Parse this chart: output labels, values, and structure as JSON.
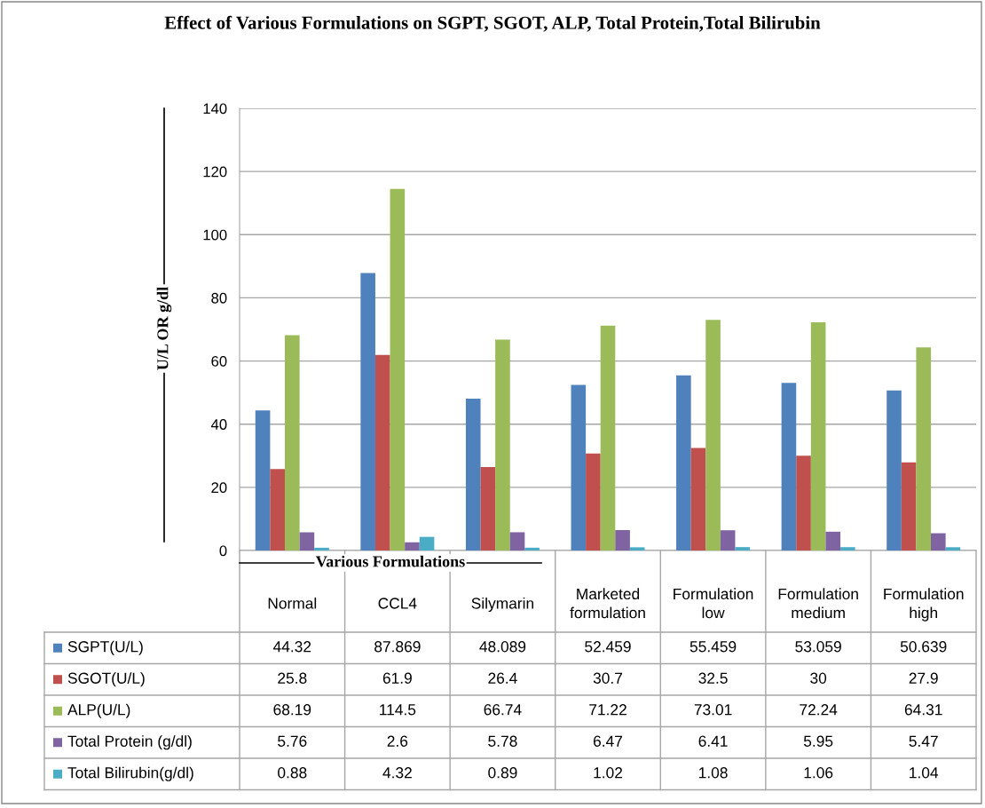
{
  "chart_data": {
    "type": "bar",
    "title": "Effect of Various Formulations on SGPT, SGOT, ALP, Total Protein,Total Bilirubin",
    "xlabel": "Various Formulations",
    "ylabel": "U/L OR g/dl",
    "categories": [
      "Normal",
      "CCL4",
      "Silymarin",
      "Marketed formulation",
      "Formulation low",
      "Formulation medium",
      "Formulation high"
    ],
    "series": [
      {
        "name": "SGPT(U/L)",
        "color": "#4f81bd",
        "values": [
          44.32,
          87.869,
          48.089,
          52.459,
          55.459,
          53.059,
          50.639
        ]
      },
      {
        "name": "SGOT(U/L)",
        "color": "#c0504d",
        "values": [
          25.8,
          61.9,
          26.4,
          30.7,
          32.5,
          30,
          27.9
        ]
      },
      {
        "name": "ALP(U/L)",
        "color": "#9bbb59",
        "values": [
          68.19,
          114.5,
          66.74,
          71.22,
          73.01,
          72.24,
          64.31
        ]
      },
      {
        "name": "Total Protein (g/dl)",
        "color": "#8064a2",
        "values": [
          5.76,
          2.6,
          5.78,
          6.47,
          6.41,
          5.95,
          5.47
        ]
      },
      {
        "name": "Total Bilirubin(g/dl)",
        "color": "#4bacc6",
        "values": [
          0.88,
          4.32,
          0.89,
          1.02,
          1.08,
          1.06,
          1.04
        ]
      }
    ],
    "ylim": [
      0,
      140
    ],
    "yticks": [
      0,
      20,
      40,
      60,
      80,
      100,
      120,
      140
    ],
    "grid": "y",
    "legend": "bottom",
    "data_labels": true
  }
}
